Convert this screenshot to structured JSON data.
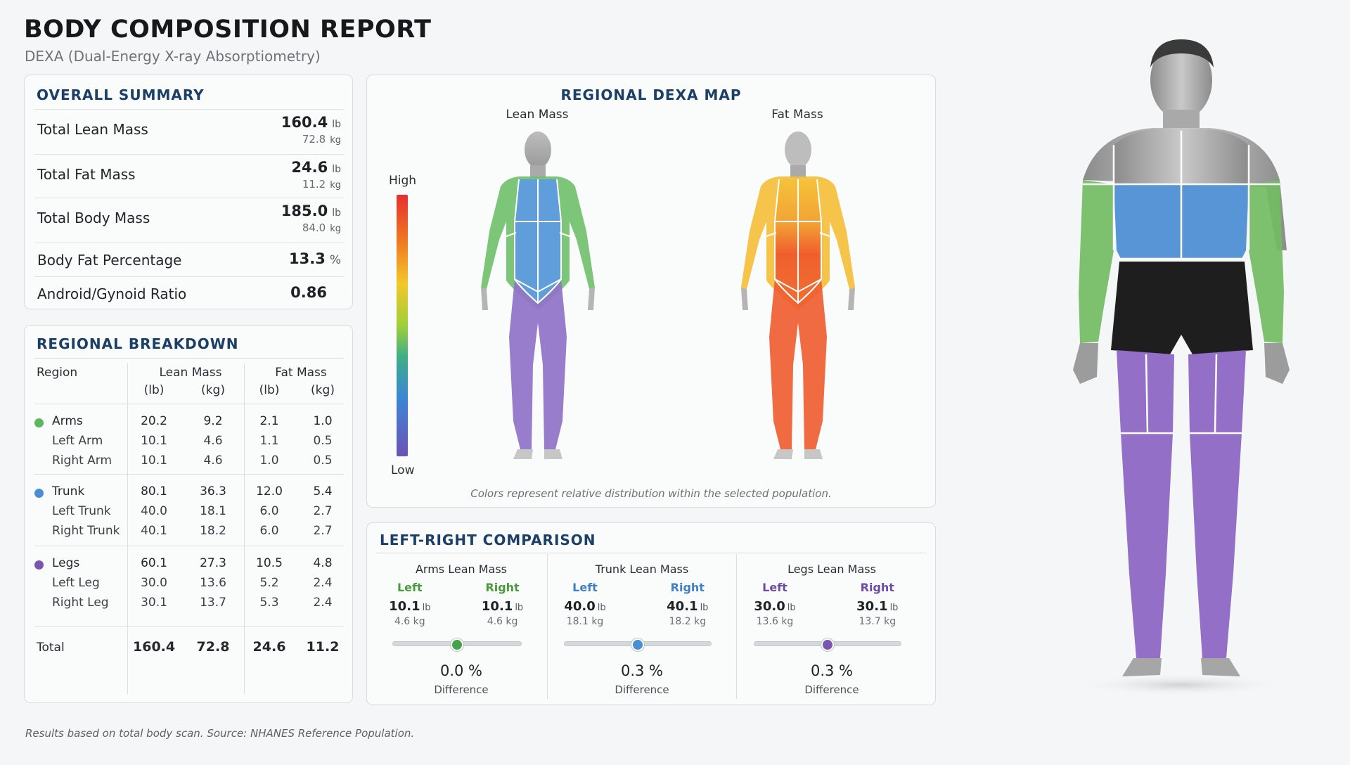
{
  "header": {
    "title": "BODY COMPOSITION REPORT",
    "subtitle": "DEXA (Dual-Energy X-ray Absorptiometry)"
  },
  "summary": {
    "title": "OVERALL SUMMARY",
    "rows": [
      {
        "label": "Total Lean Mass",
        "value": "160.4",
        "unit": "lb",
        "sub": "72.8",
        "sub_unit": "kg"
      },
      {
        "label": "Total Fat Mass",
        "value": "24.6",
        "unit": "lb",
        "sub": "11.2",
        "sub_unit": "kg"
      },
      {
        "label": "Total Body Mass",
        "value": "185.0",
        "unit": "lb",
        "sub": "84.0",
        "sub_unit": "kg"
      },
      {
        "label": "Body Fat Percentage",
        "value": "13.3",
        "unit": "%"
      },
      {
        "label": "Android/Gynoid Ratio",
        "value": "0.86"
      }
    ]
  },
  "regional": {
    "title": "REGIONAL BREAKDOWN",
    "headers": {
      "region": "Region",
      "lean": "Lean Mass",
      "fat": "Fat Mass",
      "lb": "(lb)",
      "kg": "(kg)"
    },
    "groups": [
      {
        "name": "Arms",
        "color": "#5cb85c",
        "values": [
          "20.2",
          "9.2",
          "2.1",
          "1.0"
        ],
        "subs": [
          {
            "name": "Left Arm",
            "values": [
              "10.1",
              "4.6",
              "1.1",
              "0.5"
            ]
          },
          {
            "name": "Right Arm",
            "values": [
              "10.1",
              "4.6",
              "1.0",
              "0.5"
            ]
          }
        ]
      },
      {
        "name": "Trunk",
        "color": "#4a8fd6",
        "values": [
          "80.1",
          "36.3",
          "12.0",
          "5.4"
        ],
        "subs": [
          {
            "name": "Left Trunk",
            "values": [
              "40.0",
              "18.1",
              "6.0",
              "2.7"
            ]
          },
          {
            "name": "Right Trunk",
            "values": [
              "40.1",
              "18.2",
              "6.0",
              "2.7"
            ]
          }
        ]
      },
      {
        "name": "Legs",
        "color": "#7a56b0",
        "values": [
          "60.1",
          "27.3",
          "10.5",
          "4.8"
        ],
        "subs": [
          {
            "name": "Left Leg",
            "values": [
              "30.0",
              "13.6",
              "5.2",
              "2.4"
            ]
          },
          {
            "name": "Right Leg",
            "values": [
              "30.1",
              "13.7",
              "5.3",
              "2.4"
            ]
          }
        ]
      }
    ],
    "total": {
      "name": "Total",
      "values": [
        "160.4",
        "72.8",
        "24.6",
        "11.2"
      ]
    }
  },
  "dexa_map": {
    "title": "REGIONAL DEXA MAP",
    "lean_label": "Lean Mass",
    "fat_label": "Fat Mass",
    "scale_high": "High",
    "scale_low": "Low",
    "caption": "Colors represent relative distribution within the selected population."
  },
  "comparison": {
    "title": "LEFT-RIGHT COMPARISON",
    "left_label": "Left",
    "right_label": "Right",
    "diff_label": "Difference",
    "items": [
      {
        "title": "Arms Lean Mass",
        "color": "#4a9a3c",
        "knob": "#45a34a",
        "left_lb": "10.1",
        "left_kg": "4.6",
        "right_lb": "10.1",
        "right_kg": "4.6",
        "diff": "0.0 %",
        "balance": 0.5
      },
      {
        "title": "Trunk Lean Mass",
        "color": "#3f7fc6",
        "knob": "#4a8fd6",
        "left_lb": "40.0",
        "left_kg": "18.1",
        "right_lb": "40.1",
        "right_kg": "18.2",
        "diff": "0.3 %",
        "balance": 0.5
      },
      {
        "title": "Legs Lean Mass",
        "color": "#6d4ba8",
        "knob": "#7a56b0",
        "left_lb": "30.0",
        "left_kg": "13.6",
        "right_lb": "30.1",
        "right_kg": "13.7",
        "diff": "0.3 %",
        "balance": 0.5
      }
    ],
    "unit_lb": "lb",
    "unit_kg": "kg"
  },
  "footer": "Results based on total body scan.   Source: NHANES Reference Population.",
  "colors": {
    "arms": "#6cbf64",
    "trunk": "#4f8fd4",
    "legs": "#8a64c2",
    "title": "#1b3f66"
  },
  "icons": {
    "arms_marker": "green-dot-icon",
    "trunk_marker": "blue-dot-icon",
    "legs_marker": "purple-dot-icon"
  }
}
